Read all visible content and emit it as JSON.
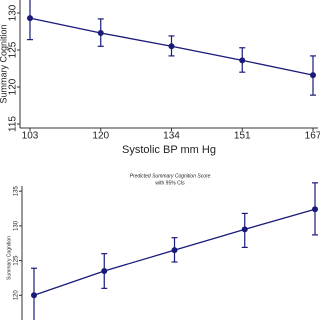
{
  "chart_data": [
    {
      "type": "line",
      "ylabel": "Summary Cognition",
      "xlabel": "Systolic BP mm Hg",
      "categories": [
        "103",
        "120",
        "134",
        "151",
        "167"
      ],
      "series": [
        {
          "color": "#1a1a7a",
          "values": [
            129.3,
            127.3,
            125.5,
            123.6,
            121.6
          ],
          "lower": [
            126.4,
            125.5,
            124.2,
            122.0,
            118.9
          ],
          "upper": [
            132.2,
            129.2,
            126.9,
            125.3,
            124.2
          ]
        }
      ],
      "ylim": [
        114.5,
        131.7
      ],
      "yticks": [
        115,
        120,
        125,
        130
      ]
    },
    {
      "type": "line",
      "title": "Predicted Summary Cognition Score",
      "subtitle": "with 95% CIs",
      "ylabel": "Summary Cognition",
      "categories": [
        null,
        null,
        null,
        null,
        null
      ],
      "series": [
        {
          "color": "#1a1a7a",
          "values": [
            120,
            123.5,
            126.5,
            129.5,
            132.4
          ],
          "lower": [
            116,
            121,
            124.8,
            126.9,
            128.7
          ],
          "upper": [
            123.9,
            126,
            128.3,
            131.8,
            136.2
          ]
        }
      ],
      "ylim": [
        115,
        137
      ],
      "yticks": [
        120,
        125,
        130,
        135
      ]
    }
  ]
}
